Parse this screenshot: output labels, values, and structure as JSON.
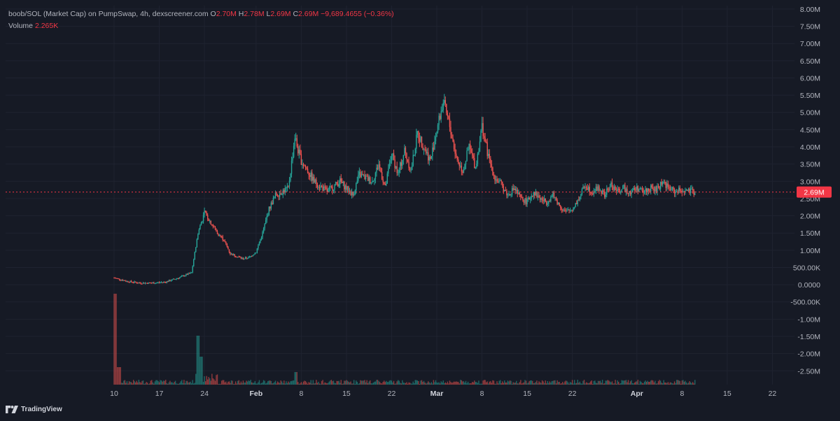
{
  "legend": {
    "title": "boob/SOL (Market Cap) on PumpSwap, 4h, dexscreener.com",
    "o_label": "O",
    "o_val": "2.70M",
    "h_label": "H",
    "h_val": "2.78M",
    "l_label": "L",
    "l_val": "2.69M",
    "c_label": "C",
    "c_val": "2.69M",
    "change": "−9,689.4655 (−0.36%)",
    "volume_label": "Volume",
    "volume_val": "2.265K"
  },
  "brand": {
    "name": "TradingView",
    "logo_icon": "tradingview-logo-icon"
  },
  "colors": {
    "background": "#161a25",
    "up": "#26a69a",
    "down": "#ef5350",
    "axis_text": "#b2b5be",
    "price_tag": "#f23645"
  },
  "chart_data": {
    "type": "candlestick",
    "interval": "4h",
    "y_unit": "market cap",
    "y_ticks": [
      "8.00M",
      "7.50M",
      "7.00M",
      "6.50M",
      "6.00M",
      "5.50M",
      "5.00M",
      "4.50M",
      "4.00M",
      "3.50M",
      "3.00M",
      "2.50M",
      "2.00M",
      "1.50M",
      "1.00M",
      "500.00K",
      "0.0000",
      "-500.00K",
      "-1.00M",
      "-1.50M",
      "-2.00M",
      "-2.50M"
    ],
    "ylim": [
      -2.9,
      8.1
    ],
    "x_ticks": [
      "10",
      "17",
      "24",
      "Feb",
      "8",
      "15",
      "22",
      "Mar",
      "8",
      "15",
      "22",
      "Apr",
      "8",
      "15",
      "22"
    ],
    "x_tick_days": [
      0,
      7,
      14,
      22,
      29,
      36,
      43,
      50,
      57,
      64,
      71,
      81,
      88,
      95,
      102
    ],
    "last_price_label": "2.69M",
    "last_price": 2.69,
    "series": [
      {
        "x_days": [
          0,
          2,
          4,
          6,
          8,
          10,
          12,
          13,
          14,
          15,
          16,
          17,
          18,
          20,
          21,
          22,
          23,
          24,
          25,
          27,
          28,
          28.5,
          29,
          30,
          31,
          33,
          35,
          37,
          38,
          40,
          41,
          42,
          43,
          44,
          45,
          46,
          47,
          48,
          49,
          50,
          51,
          52,
          53,
          54,
          55,
          56,
          57,
          58,
          59,
          60,
          61,
          62,
          63,
          64,
          65,
          66,
          67,
          68,
          69,
          70,
          71,
          72,
          73,
          74,
          75,
          76,
          77,
          78,
          79,
          80,
          81,
          82,
          83,
          84,
          85,
          86,
          87,
          88,
          89,
          90
        ],
        "values": [
          0.2,
          0.1,
          0.05,
          0.05,
          0.08,
          0.2,
          0.35,
          1.5,
          2.1,
          1.8,
          1.5,
          1.3,
          0.9,
          0.75,
          0.8,
          0.95,
          1.5,
          2.2,
          2.6,
          2.8,
          4.3,
          3.9,
          3.6,
          3.3,
          3.0,
          2.7,
          3.0,
          2.6,
          3.2,
          3.0,
          3.5,
          2.8,
          3.8,
          3.2,
          3.9,
          3.3,
          4.4,
          4.0,
          3.6,
          4.5,
          5.3,
          4.6,
          3.7,
          3.3,
          4.0,
          3.4,
          4.6,
          3.7,
          3.1,
          2.9,
          2.6,
          2.8,
          2.5,
          2.4,
          2.7,
          2.5,
          2.4,
          2.6,
          2.3,
          2.1,
          2.2,
          2.5,
          2.9,
          2.7,
          2.8,
          2.6,
          2.9,
          2.7,
          2.8,
          2.7,
          2.8,
          2.7,
          2.8,
          2.75,
          3.0,
          2.8,
          2.7,
          2.75,
          2.7,
          2.69
        ]
      }
    ],
    "volume_label": "Volume"
  }
}
